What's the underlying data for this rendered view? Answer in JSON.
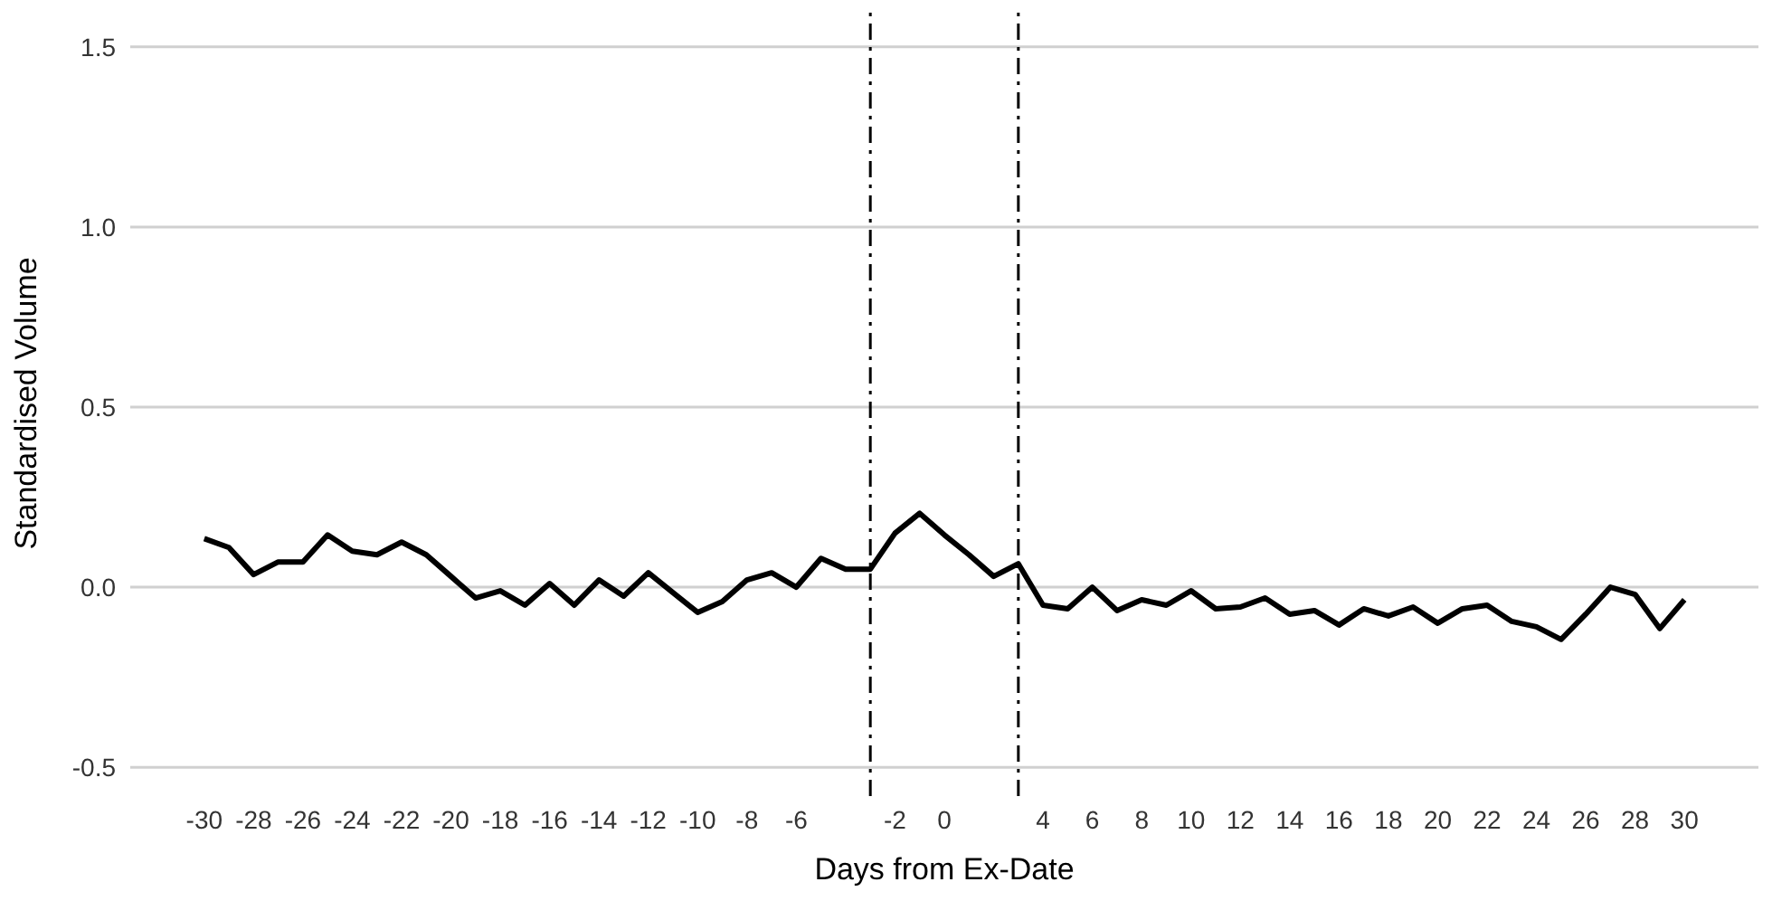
{
  "chart_data": {
    "type": "line",
    "xlabel": "Days from Ex-Date",
    "ylabel": "Standardised Volume",
    "x": [
      -30,
      -29,
      -28,
      -27,
      -26,
      -25,
      -24,
      -23,
      -22,
      -21,
      -20,
      -19,
      -18,
      -17,
      -16,
      -15,
      -14,
      -13,
      -12,
      -11,
      -10,
      -9,
      -8,
      -7,
      -6,
      -5,
      -4,
      -3,
      -2,
      -1,
      0,
      1,
      2,
      3,
      4,
      5,
      6,
      7,
      8,
      9,
      10,
      11,
      12,
      13,
      14,
      15,
      16,
      17,
      18,
      19,
      20,
      21,
      22,
      23,
      24,
      25,
      26,
      27,
      28,
      29,
      30
    ],
    "series": [
      {
        "color": "#000000",
        "values": [
          0.135,
          0.11,
          0.035,
          0.07,
          0.07,
          0.145,
          0.1,
          0.09,
          0.125,
          0.09,
          0.03,
          -0.03,
          -0.01,
          -0.05,
          0.01,
          -0.05,
          0.02,
          -0.025,
          0.04,
          -0.015,
          -0.07,
          -0.04,
          0.02,
          0.04,
          0.0,
          0.08,
          0.05,
          0.05,
          0.15,
          0.205,
          0.145,
          0.09,
          0.03,
          0.065,
          -0.05,
          -0.06,
          0.0,
          -0.065,
          -0.035,
          -0.05,
          -0.01,
          -0.06,
          -0.055,
          -0.03,
          -0.075,
          -0.065,
          -0.105,
          -0.06,
          -0.08,
          -0.055,
          -0.1,
          -0.06,
          -0.05,
          -0.095,
          -0.11,
          -0.145,
          -0.075,
          0.0,
          -0.02,
          -0.115,
          -0.035
        ]
      }
    ],
    "xlim": [
      -33,
      33
    ],
    "xticks": [
      -30,
      -28,
      -26,
      -24,
      -22,
      -20,
      -18,
      -16,
      -14,
      -12,
      -10,
      -8,
      -6,
      -2,
      0,
      4,
      6,
      8,
      10,
      12,
      14,
      16,
      18,
      20,
      22,
      24,
      26,
      28,
      30
    ],
    "ylim": [
      -0.58,
      1.6
    ],
    "yticks": [
      -0.5,
      {
        "value": 0,
        "label": "0.0"
      },
      0.5,
      {
        "value": 1,
        "label": "1.0"
      },
      1.5
    ],
    "ref_lines": [
      {
        "axis": "x",
        "value": -3,
        "color": "#000000",
        "line_style": "dashed"
      },
      {
        "axis": "x",
        "value": 3,
        "color": "#000000",
        "line_style": "dashed"
      }
    ],
    "grid": "y",
    "marker": "none",
    "line_style": "solid",
    "legend": false
  }
}
